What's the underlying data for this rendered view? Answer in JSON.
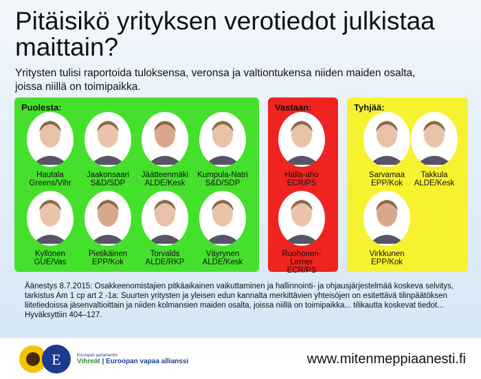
{
  "title": "Pitäisikö yrityksen verotiedot julkistaa maittain?",
  "subtitle": "Yritysten tulisi raportoida tuloksensa, veronsa ja valtiontukensa niiden maiden osalta, joissa niillä on toimipaikka.",
  "panels": {
    "for": {
      "label": "Puolesta:",
      "color": "#45e02c",
      "meps": [
        {
          "name": "Hautala",
          "group": "Greens/Vihr"
        },
        {
          "name": "Jaakonsaari",
          "group": "S&D/SDP"
        },
        {
          "name": "Jäätteenmäki",
          "group": "ALDE/Kesk"
        },
        {
          "name": "Kumpula-Natri",
          "group": "S&D/SDP"
        },
        {
          "name": "Kyllönen",
          "group": "GUE/Vas"
        },
        {
          "name": "Pietikäinen",
          "group": "EPP/Kok"
        },
        {
          "name": "Torvalds",
          "group": "ALDE/RKP"
        },
        {
          "name": "Väyrynen",
          "group": "ALDE/Kesk"
        }
      ]
    },
    "against": {
      "label": "Vastaan:",
      "color": "#ef2420",
      "meps": [
        {
          "name": "Halla-aho",
          "group": "ECR/PS"
        },
        {
          "name": "Ruohonen-Lerner",
          "group": "ECR/PS"
        }
      ]
    },
    "abstain": {
      "label": "Tyhjää:",
      "color": "#f7f230",
      "meps": [
        {
          "name": "Sarvamaa",
          "group": "EPP/Kok"
        },
        {
          "name": "Takkula",
          "group": "ALDE/Kesk"
        },
        {
          "name": "Virkkunen",
          "group": "EPP/Kok"
        }
      ]
    }
  },
  "vote_text": "Äänestys 8.7.2015: Osakkeenomistajien pitkäaikainen vaikuttaminen ja hallinnointi- ja ohjausjärjestelmää koskeva selvitys, tarkistus Am 1 cp art 2 -1a: Suurten yritysten ja yleisen edun kannalta merkittävien yhteisöjen on esitettävä tilinpäätöksen liitetiedoissa jäsenvaltioittain ja niiden kolmansien maiden osalta, joissa niillä on toimipaikka... tilikautta koskevat tiedot... Hyväksyttiin 404–127.",
  "footer": {
    "logo_line1": "Euroopan parlamentin",
    "logo_green": "Vihreät",
    "logo_sep": "|",
    "logo_rest": "Euroopan vapaa allianssi",
    "url": "www.mitenmeppiaanesti.fi"
  }
}
